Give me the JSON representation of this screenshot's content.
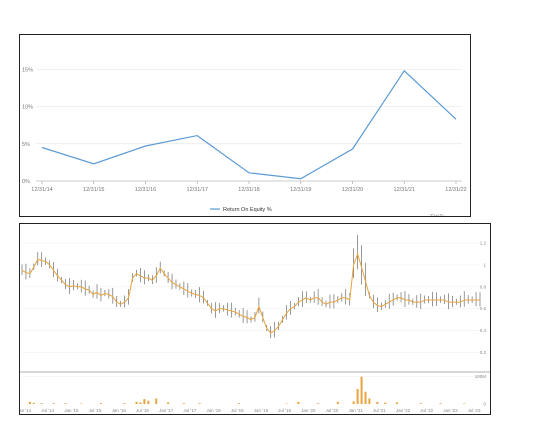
{
  "chart_data": [
    {
      "type": "line",
      "title": "",
      "xlabel": "",
      "ylabel": "",
      "categories": [
        "12/31/14",
        "12/31/15",
        "12/31/16",
        "12/31/17",
        "12/31/18",
        "12/31/19",
        "12/31/20",
        "12/31/21",
        "12/31/22"
      ],
      "y_ticks": [
        "0%",
        "5%",
        "10%",
        "15%"
      ],
      "ylim": [
        0,
        18
      ],
      "grid": true,
      "legend_position": "bottom-center",
      "series": [
        {
          "name": "Return On Equity %",
          "values": [
            4.5,
            2.3,
            4.7,
            6.1,
            1.1,
            0.3,
            4.3,
            14.8,
            8.3
          ]
        }
      ],
      "color": "#5b9bd5",
      "corner_label": "TIKR"
    },
    {
      "type": "line",
      "title": "",
      "description_note": "",
      "x_ticks": [
        "Jan '14",
        "Jul '14",
        "Jan '15",
        "Jul '15",
        "Jan '16",
        "Jul '16",
        "Jan '17",
        "Jul '17",
        "Jan '18",
        "Jul '18",
        "Jan '19",
        "Jul '19",
        "Jan '20",
        "Jul '20",
        "Jan '21",
        "Jul '21",
        "Jan '22",
        "Jul '22",
        "Jan '23",
        "Jul '23"
      ],
      "y_ticks": [
        "0.2",
        "0.4",
        "0.6",
        "0.8",
        "1",
        "1.2"
      ],
      "ylim": [
        0.05,
        1.3
      ],
      "x_range": [
        "Jan '14",
        "Sep '23"
      ],
      "price_color": "#e8a33d",
      "range_color": "#555555",
      "price": {
        "x_months": [
          0,
          1,
          2,
          3,
          4,
          5,
          6,
          7,
          8,
          9,
          10,
          11,
          12,
          13,
          14,
          15,
          16,
          17,
          18,
          19,
          20,
          21,
          22,
          23,
          24,
          25,
          26,
          27,
          28,
          29,
          30,
          31,
          32,
          33,
          34,
          35,
          36,
          37,
          38,
          39,
          40,
          41,
          42,
          43,
          44,
          45,
          46,
          47,
          48,
          49,
          50,
          51,
          52,
          53,
          54,
          55,
          56,
          57,
          58,
          59,
          60,
          61,
          62,
          63,
          64,
          65,
          66,
          67,
          68,
          69,
          70,
          71,
          72,
          73,
          74,
          75,
          76,
          77,
          78,
          79,
          80,
          81,
          82,
          83,
          84,
          85,
          86,
          87,
          88,
          89,
          90,
          91,
          92,
          93,
          94,
          95,
          96,
          97,
          98,
          99,
          100,
          101,
          102,
          103,
          104,
          105,
          106,
          107,
          108,
          109,
          110,
          111,
          112,
          113,
          114,
          115,
          116
        ],
        "values": [
          0.95,
          0.93,
          0.92,
          0.98,
          1.05,
          1.04,
          1.03,
          1.0,
          0.95,
          0.9,
          0.86,
          0.82,
          0.8,
          0.81,
          0.8,
          0.8,
          0.78,
          0.77,
          0.73,
          0.75,
          0.72,
          0.74,
          0.73,
          0.71,
          0.66,
          0.64,
          0.66,
          0.7,
          0.88,
          0.92,
          0.9,
          0.88,
          0.88,
          0.86,
          0.9,
          0.97,
          0.92,
          0.88,
          0.84,
          0.82,
          0.8,
          0.78,
          0.76,
          0.74,
          0.73,
          0.72,
          0.7,
          0.65,
          0.6,
          0.58,
          0.6,
          0.6,
          0.59,
          0.58,
          0.57,
          0.55,
          0.53,
          0.52,
          0.5,
          0.52,
          0.62,
          0.52,
          0.42,
          0.38,
          0.4,
          0.44,
          0.5,
          0.56,
          0.6,
          0.62,
          0.66,
          0.68,
          0.7,
          0.68,
          0.7,
          0.7,
          0.66,
          0.64,
          0.66,
          0.66,
          0.68,
          0.7,
          0.7,
          0.68,
          1.0,
          1.1,
          0.98,
          0.85,
          0.72,
          0.66,
          0.63,
          0.62,
          0.64,
          0.66,
          0.68,
          0.7,
          0.7,
          0.68,
          0.68,
          0.66,
          0.66,
          0.66,
          0.68,
          0.68,
          0.68,
          0.68,
          0.68,
          0.68,
          0.66,
          0.66,
          0.66,
          0.66,
          0.68,
          0.68,
          0.68,
          0.68,
          0.68
        ]
      },
      "volume": {
        "x_months": [
          2,
          3,
          5,
          8,
          11,
          15,
          20,
          26,
          29,
          30,
          31,
          32,
          34,
          37,
          41,
          45,
          55,
          67,
          70,
          75,
          80,
          84,
          85,
          86,
          87,
          88,
          90,
          92,
          95,
          101,
          106,
          112
        ],
        "values": [
          8,
          4,
          3,
          3,
          3,
          2,
          3,
          3,
          8,
          6,
          18,
          12,
          20,
          6,
          3,
          3,
          3,
          2,
          8,
          3,
          8,
          10,
          55,
          100,
          45,
          20,
          8,
          5,
          6,
          3,
          3,
          2
        ]
      },
      "volume_tick": "100M",
      "volume_zero_tick": "0"
    }
  ]
}
